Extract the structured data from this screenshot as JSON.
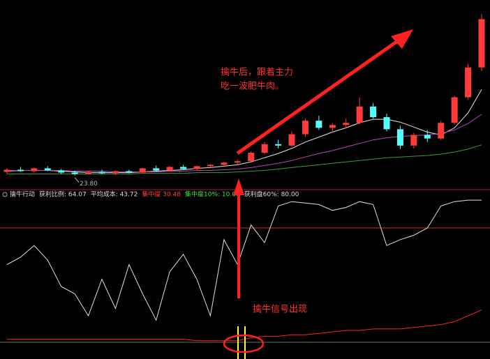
{
  "chart_data": {
    "type": "candlestick",
    "up_color": "#ff3b3b",
    "down_color": "#54ffff",
    "ylim": [
      22,
      48
    ],
    "low_label": "23.80",
    "candles": [
      {
        "open": 24.3,
        "high": 24.8,
        "low": 24.0,
        "close": 24.6
      },
      {
        "open": 24.6,
        "high": 25.0,
        "low": 24.3,
        "close": 24.4
      },
      {
        "open": 24.4,
        "high": 24.9,
        "low": 24.2,
        "close": 24.8
      },
      {
        "open": 24.8,
        "high": 25.1,
        "low": 24.4,
        "close": 24.5
      },
      {
        "open": 24.5,
        "high": 24.7,
        "low": 24.0,
        "close": 24.2
      },
      {
        "open": 24.2,
        "high": 24.5,
        "low": 23.8,
        "close": 24.0
      },
      {
        "open": 24.0,
        "high": 24.4,
        "low": 23.9,
        "close": 24.3
      },
      {
        "open": 24.3,
        "high": 24.6,
        "low": 24.0,
        "close": 24.1
      },
      {
        "open": 24.1,
        "high": 24.5,
        "low": 23.9,
        "close": 24.4
      },
      {
        "open": 24.4,
        "high": 24.6,
        "low": 24.1,
        "close": 24.2
      },
      {
        "open": 24.2,
        "high": 24.9,
        "low": 24.1,
        "close": 24.8
      },
      {
        "open": 24.8,
        "high": 25.2,
        "low": 24.4,
        "close": 24.5
      },
      {
        "open": 24.5,
        "high": 25.1,
        "low": 24.3,
        "close": 25.0
      },
      {
        "open": 25.0,
        "high": 25.3,
        "low": 24.6,
        "close": 24.7
      },
      {
        "open": 24.7,
        "high": 25.2,
        "low": 24.5,
        "close": 25.1
      },
      {
        "open": 25.1,
        "high": 25.4,
        "low": 24.8,
        "close": 25.3
      },
      {
        "open": 25.3,
        "high": 25.7,
        "low": 25.0,
        "close": 25.6
      },
      {
        "open": 25.6,
        "high": 26.0,
        "low": 25.3,
        "close": 25.8
      },
      {
        "open": 25.8,
        "high": 27.2,
        "low": 25.6,
        "close": 27.0
      },
      {
        "open": 27.0,
        "high": 28.5,
        "low": 26.8,
        "close": 28.2
      },
      {
        "open": 28.2,
        "high": 28.8,
        "low": 27.6,
        "close": 28.0
      },
      {
        "open": 28.0,
        "high": 30.0,
        "low": 27.8,
        "close": 29.6
      },
      {
        "open": 29.6,
        "high": 31.8,
        "low": 29.2,
        "close": 31.5
      },
      {
        "open": 31.5,
        "high": 32.2,
        "low": 30.2,
        "close": 30.5
      },
      {
        "open": 30.5,
        "high": 31.2,
        "low": 29.8,
        "close": 30.9
      },
      {
        "open": 30.9,
        "high": 31.8,
        "low": 30.4,
        "close": 31.2
      },
      {
        "open": 31.2,
        "high": 34.8,
        "low": 31.0,
        "close": 33.5
      },
      {
        "open": 33.5,
        "high": 34.0,
        "low": 31.8,
        "close": 32.0
      },
      {
        "open": 32.0,
        "high": 32.5,
        "low": 30.0,
        "close": 30.3
      },
      {
        "open": 30.3,
        "high": 30.8,
        "low": 27.5,
        "close": 28.0
      },
      {
        "open": 28.0,
        "high": 29.8,
        "low": 27.6,
        "close": 29.5
      },
      {
        "open": 29.5,
        "high": 30.2,
        "low": 28.5,
        "close": 29.0
      },
      {
        "open": 29.0,
        "high": 31.5,
        "low": 28.8,
        "close": 31.2
      },
      {
        "open": 31.2,
        "high": 35.0,
        "low": 31.0,
        "close": 34.8
      },
      {
        "open": 34.8,
        "high": 39.5,
        "low": 34.5,
        "close": 39.0
      },
      {
        "open": 39.0,
        "high": 46.5,
        "low": 38.5,
        "close": 45.8
      }
    ],
    "ma_lines": [
      {
        "color": "#e8e8e8",
        "values": [
          24.4,
          24.5,
          24.5,
          24.5,
          24.4,
          24.3,
          24.2,
          24.2,
          24.2,
          24.2,
          24.3,
          24.4,
          24.5,
          24.6,
          24.8,
          24.9,
          25.1,
          25.3,
          25.7,
          26.3,
          26.9,
          27.6,
          28.5,
          29.2,
          29.9,
          30.5,
          31.2,
          31.7,
          31.7,
          31.3,
          30.6,
          29.9,
          29.5,
          30.5,
          32.6,
          35.9
        ]
      },
      {
        "color": "#c040c0",
        "values": [
          24.5,
          24.5,
          24.5,
          24.5,
          24.5,
          24.4,
          24.4,
          24.4,
          24.3,
          24.3,
          24.3,
          24.3,
          24.4,
          24.4,
          24.5,
          24.5,
          24.6,
          24.7,
          24.9,
          25.2,
          25.5,
          25.9,
          26.4,
          26.9,
          27.3,
          27.8,
          28.3,
          28.8,
          29.1,
          29.3,
          29.4,
          29.5,
          29.7,
          30.2,
          31.1,
          32.4
        ]
      },
      {
        "color": "#3a9a3a",
        "values": [
          24.0,
          24.0,
          24.0,
          24.0,
          24.0,
          24.0,
          24.0,
          24.0,
          24.0,
          24.0,
          24.1,
          24.1,
          24.1,
          24.1,
          24.2,
          24.2,
          24.2,
          24.3,
          24.4,
          24.5,
          24.7,
          24.9,
          25.1,
          25.3,
          25.5,
          25.7,
          25.9,
          26.1,
          26.3,
          26.4,
          26.5,
          26.6,
          26.8,
          27.1,
          27.5,
          28.1
        ]
      }
    ],
    "annotation_lines": [
      "擒牛后，跟着主力",
      "吃一波肥牛肉。"
    ],
    "signal_text": "擒牛信号出现",
    "indicator": {
      "header": [
        {
          "text": "擒牛行动",
          "color": "#dddddd"
        },
        {
          "text": "获利比例: 64.07",
          "color": "#dddddd"
        },
        {
          "text": "平均成本: 43.72",
          "color": "#dddddd"
        },
        {
          "text": "集中度 30.48",
          "color": "#ff4040"
        },
        {
          "text": "集中度10%: 10.00",
          "color": "#40e040"
        },
        {
          "text": "获利盘60%: 80.00",
          "color": "#dddddd"
        }
      ],
      "ylim": [
        0,
        100
      ],
      "level": 80,
      "level_color": "#c83030",
      "series": [
        {
          "color": "#e0e0e0",
          "values": [
            55,
            60,
            68,
            58,
            40,
            35,
            20,
            45,
            25,
            55,
            35,
            17,
            50,
            62,
            45,
            20,
            72,
            55,
            82,
            70,
            95,
            98,
            97,
            96,
            92,
            94,
            98,
            96,
            68,
            72,
            75,
            80,
            95,
            98,
            99,
            99
          ]
        },
        {
          "color": "#ff2020",
          "values": [
            4,
            4,
            4,
            4,
            4,
            4,
            4,
            4,
            4,
            4,
            4,
            4,
            4,
            4,
            3,
            3,
            3,
            3,
            5,
            6,
            6,
            7,
            7,
            8,
            9,
            10,
            10,
            11,
            11,
            11,
            12,
            13,
            14,
            16,
            20,
            24
          ]
        }
      ]
    }
  }
}
